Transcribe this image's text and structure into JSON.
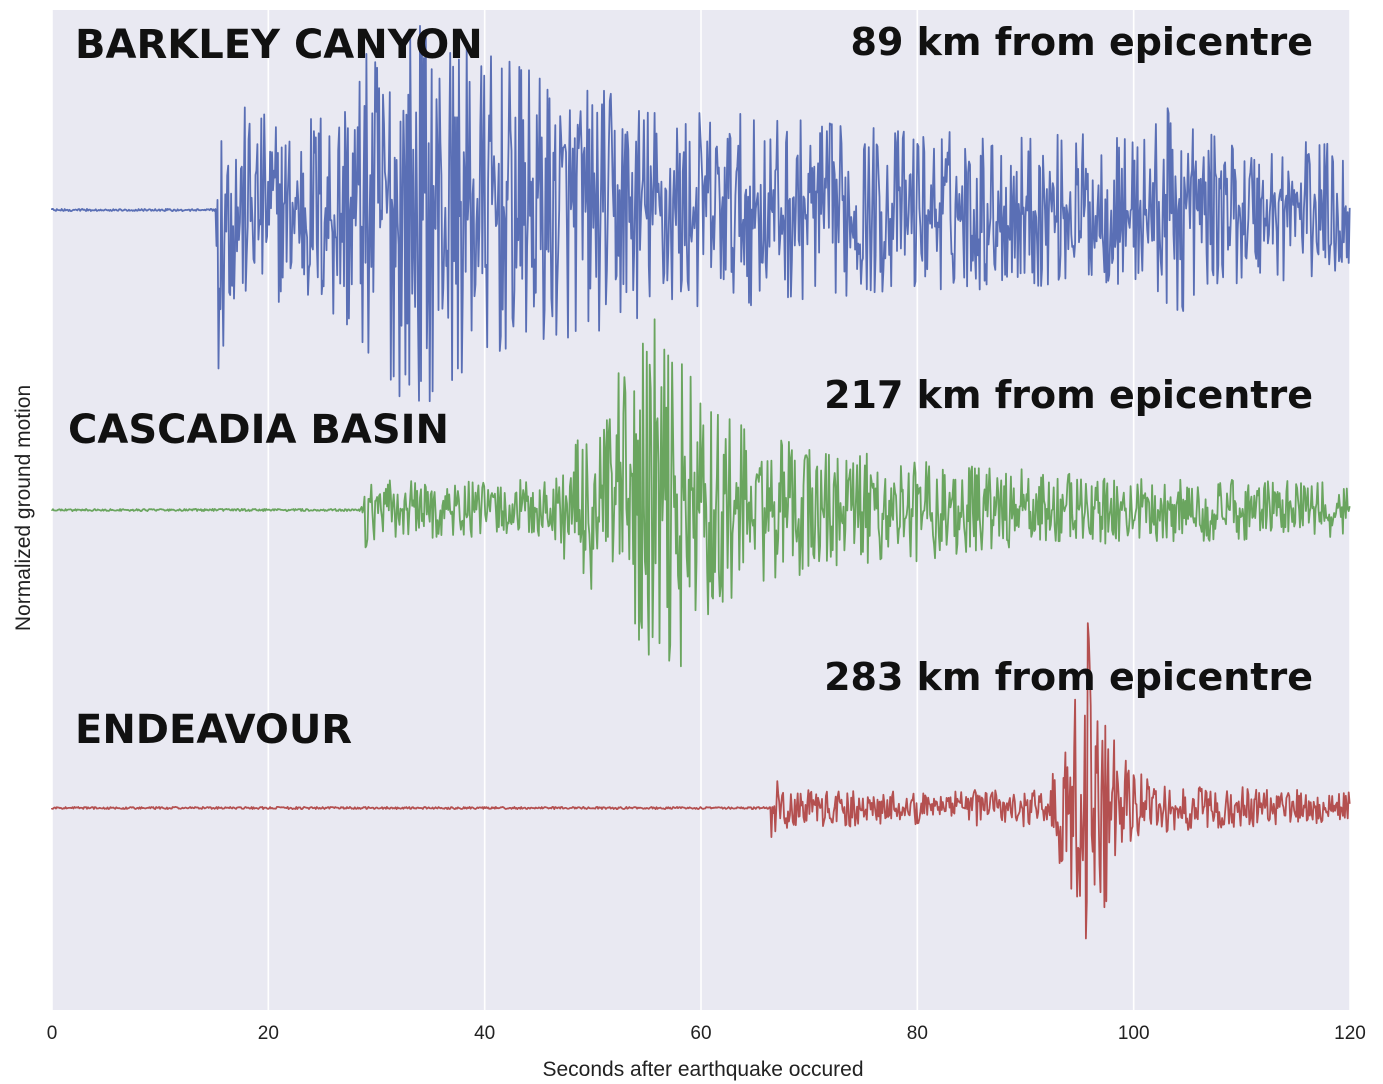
{
  "chart_data": {
    "type": "line",
    "xlabel": "Seconds after earthquake occured",
    "ylabel": "Normalized ground motion",
    "xlim": [
      0,
      120
    ],
    "xticks": [
      0,
      20,
      40,
      60,
      80,
      100,
      120
    ],
    "xtick_labels": [
      "0",
      "20",
      "40",
      "60",
      "80",
      "100",
      "120"
    ],
    "grid": "vertical",
    "background": "#e9e9f2",
    "series": [
      {
        "name": "BARKLEY CANYON",
        "distance_label": "89 km from epicentre",
        "color": "#5a6fb5",
        "arrival_s": 15.2,
        "peak_s": 33.5,
        "end_s": 120,
        "envelope": [
          [
            15.2,
            0.85
          ],
          [
            16.5,
            0.55
          ],
          [
            22,
            0.45
          ],
          [
            26,
            0.6
          ],
          [
            30,
            0.85
          ],
          [
            33.5,
            1.0
          ],
          [
            40,
            0.8
          ],
          [
            45,
            0.7
          ],
          [
            52,
            0.6
          ],
          [
            60,
            0.5
          ],
          [
            70,
            0.45
          ],
          [
            85,
            0.4
          ],
          [
            100,
            0.38
          ],
          [
            105,
            0.6
          ],
          [
            106,
            0.38
          ],
          [
            120,
            0.35
          ]
        ]
      },
      {
        "name": "CASCADIA BASIN",
        "distance_label": "217 km from epicentre",
        "color": "#6aa55f",
        "arrival_s": 28.6,
        "peak_s": 56.3,
        "end_s": 120,
        "envelope": [
          [
            28.6,
            0.2
          ],
          [
            30,
            0.15
          ],
          [
            40,
            0.14
          ],
          [
            46,
            0.16
          ],
          [
            50,
            0.45
          ],
          [
            52,
            0.65
          ],
          [
            56.3,
            1.0
          ],
          [
            60,
            0.55
          ],
          [
            66,
            0.35
          ],
          [
            75,
            0.28
          ],
          [
            85,
            0.22
          ],
          [
            100,
            0.16
          ],
          [
            120,
            0.14
          ]
        ]
      },
      {
        "name": "ENDEAVOUR",
        "distance_label": "283 km from epicentre",
        "color": "#b45050",
        "arrival_s": 66.5,
        "peak_s": 95.6,
        "end_s": 120,
        "envelope": [
          [
            66.5,
            0.15
          ],
          [
            68,
            0.1
          ],
          [
            80,
            0.08
          ],
          [
            92,
            0.1
          ],
          [
            94.5,
            0.5
          ],
          [
            95.6,
            1.0
          ],
          [
            97,
            0.55
          ],
          [
            99,
            0.25
          ],
          [
            102,
            0.12
          ],
          [
            120,
            0.08
          ]
        ]
      }
    ]
  }
}
